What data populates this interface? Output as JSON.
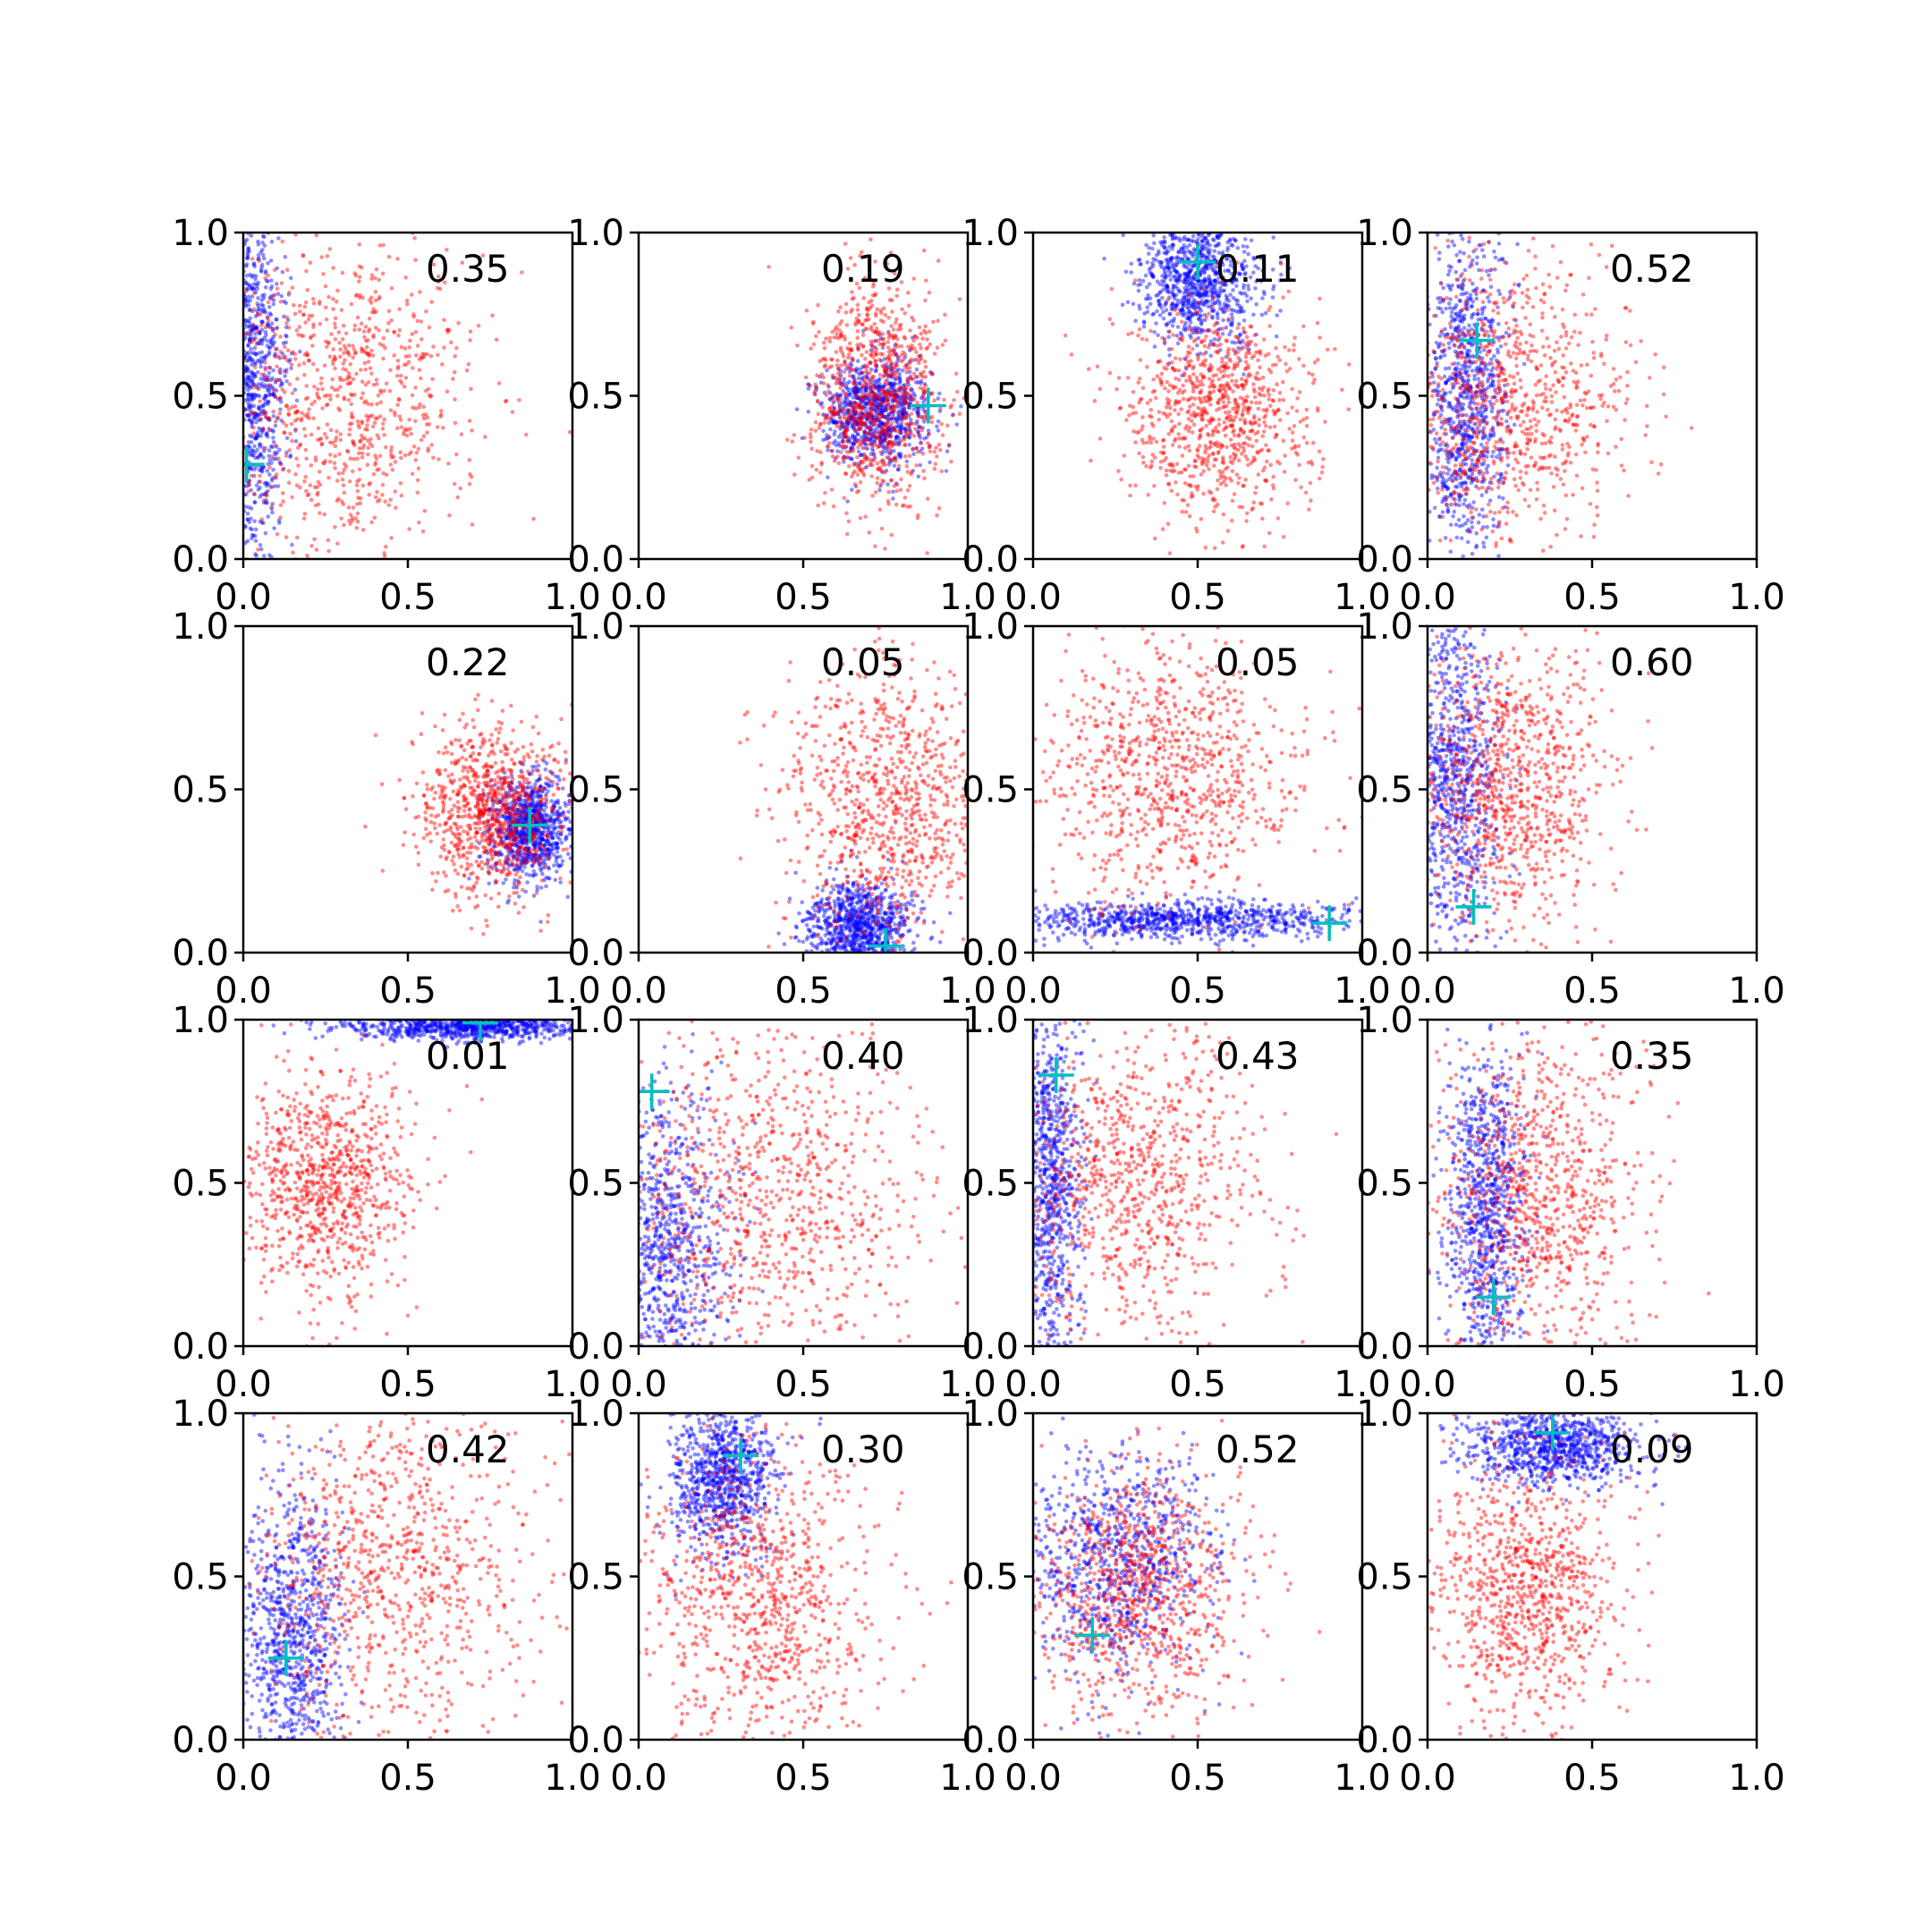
{
  "chart_data": {
    "type": "scatter",
    "layout": "4x4 grid of scatter subplots",
    "xlim": [
      0,
      1
    ],
    "ylim": [
      0,
      1
    ],
    "x_ticks": [
      "0.0",
      "0.5",
      "1.0"
    ],
    "y_ticks": [
      "0.0",
      "0.5",
      "1.0"
    ],
    "grid": false,
    "legend": "none",
    "colors": {
      "series_a": "#0000ff",
      "series_b": "#ff0000",
      "marker": "#00bfbf"
    },
    "panels": [
      {
        "value": "0.35",
        "marker": [
          0.01,
          0.29
        ],
        "red": {
          "cx": 0.3,
          "cy": 0.5,
          "sx": 0.2,
          "sy": 0.26,
          "n": 900
        },
        "blue": {
          "cx": 0.03,
          "cy": 0.55,
          "sx": 0.05,
          "sy": 0.3,
          "n": 900
        }
      },
      {
        "value": "0.19",
        "marker": [
          0.88,
          0.47
        ],
        "red": {
          "cx": 0.72,
          "cy": 0.5,
          "sx": 0.1,
          "sy": 0.17,
          "n": 900
        },
        "blue": {
          "cx": 0.72,
          "cy": 0.45,
          "sx": 0.08,
          "sy": 0.08,
          "n": 900
        }
      },
      {
        "value": "0.11",
        "marker": [
          0.5,
          0.91
        ],
        "red": {
          "cx": 0.57,
          "cy": 0.45,
          "sx": 0.14,
          "sy": 0.17,
          "n": 900
        },
        "blue": {
          "cx": 0.5,
          "cy": 0.85,
          "sx": 0.09,
          "sy": 0.1,
          "n": 900
        }
      },
      {
        "value": "0.52",
        "marker": [
          0.15,
          0.67
        ],
        "red": {
          "cx": 0.25,
          "cy": 0.5,
          "sx": 0.18,
          "sy": 0.22,
          "n": 900
        },
        "blue": {
          "cx": 0.12,
          "cy": 0.5,
          "sx": 0.06,
          "sy": 0.25,
          "n": 900
        }
      },
      {
        "value": "0.22",
        "marker": [
          0.87,
          0.39
        ],
        "red": {
          "cx": 0.75,
          "cy": 0.43,
          "sx": 0.11,
          "sy": 0.13,
          "n": 900
        },
        "blue": {
          "cx": 0.87,
          "cy": 0.38,
          "sx": 0.06,
          "sy": 0.08,
          "n": 900
        }
      },
      {
        "value": "0.05",
        "marker": [
          0.75,
          0.02
        ],
        "red": {
          "cx": 0.75,
          "cy": 0.45,
          "sx": 0.17,
          "sy": 0.22,
          "n": 900
        },
        "blue": {
          "cx": 0.67,
          "cy": 0.08,
          "sx": 0.08,
          "sy": 0.07,
          "n": 900
        }
      },
      {
        "value": "0.05",
        "marker": [
          0.9,
          0.09
        ],
        "red": {
          "cx": 0.42,
          "cy": 0.55,
          "sx": 0.2,
          "sy": 0.2,
          "n": 900
        },
        "blue": {
          "cx": 0.45,
          "cy": 0.1,
          "sx": 0.28,
          "sy": 0.03,
          "n": 900
        }
      },
      {
        "value": "0.60",
        "marker": [
          0.14,
          0.14
        ],
        "red": {
          "cx": 0.25,
          "cy": 0.5,
          "sx": 0.15,
          "sy": 0.22,
          "n": 900
        },
        "blue": {
          "cx": 0.08,
          "cy": 0.55,
          "sx": 0.07,
          "sy": 0.28,
          "n": 900
        }
      },
      {
        "value": "0.01",
        "marker": [
          0.72,
          0.99
        ],
        "red": {
          "cx": 0.25,
          "cy": 0.5,
          "sx": 0.13,
          "sy": 0.17,
          "n": 900
        },
        "blue": {
          "cx": 0.7,
          "cy": 0.98,
          "sx": 0.2,
          "sy": 0.02,
          "n": 900
        }
      },
      {
        "value": "0.40",
        "marker": [
          0.04,
          0.78
        ],
        "red": {
          "cx": 0.4,
          "cy": 0.45,
          "sx": 0.24,
          "sy": 0.27,
          "n": 900
        },
        "blue": {
          "cx": 0.08,
          "cy": 0.3,
          "sx": 0.1,
          "sy": 0.25,
          "n": 900
        }
      },
      {
        "value": "0.43",
        "marker": [
          0.07,
          0.83
        ],
        "red": {
          "cx": 0.3,
          "cy": 0.5,
          "sx": 0.2,
          "sy": 0.25,
          "n": 900
        },
        "blue": {
          "cx": 0.05,
          "cy": 0.5,
          "sx": 0.05,
          "sy": 0.3,
          "n": 900
        }
      },
      {
        "value": "0.35",
        "marker": [
          0.2,
          0.15
        ],
        "red": {
          "cx": 0.33,
          "cy": 0.45,
          "sx": 0.16,
          "sy": 0.25,
          "n": 900
        },
        "blue": {
          "cx": 0.18,
          "cy": 0.4,
          "sx": 0.06,
          "sy": 0.25,
          "n": 900
        }
      },
      {
        "value": "0.42",
        "marker": [
          0.13,
          0.25
        ],
        "red": {
          "cx": 0.45,
          "cy": 0.5,
          "sx": 0.22,
          "sy": 0.27,
          "n": 900
        },
        "blue": {
          "cx": 0.15,
          "cy": 0.3,
          "sx": 0.08,
          "sy": 0.25,
          "n": 900
        }
      },
      {
        "value": "0.30",
        "marker": [
          0.31,
          0.87
        ],
        "red": {
          "cx": 0.35,
          "cy": 0.45,
          "sx": 0.18,
          "sy": 0.25,
          "n": 900
        },
        "blue": {
          "cx": 0.26,
          "cy": 0.8,
          "sx": 0.08,
          "sy": 0.12,
          "n": 900
        }
      },
      {
        "value": "0.52",
        "marker": [
          0.18,
          0.32
        ],
        "red": {
          "cx": 0.3,
          "cy": 0.45,
          "sx": 0.17,
          "sy": 0.2,
          "n": 900
        },
        "blue": {
          "cx": 0.25,
          "cy": 0.55,
          "sx": 0.15,
          "sy": 0.17,
          "n": 900
        }
      },
      {
        "value": "0.09",
        "marker": [
          0.38,
          0.94
        ],
        "red": {
          "cx": 0.3,
          "cy": 0.45,
          "sx": 0.14,
          "sy": 0.2,
          "n": 900
        },
        "blue": {
          "cx": 0.38,
          "cy": 0.9,
          "sx": 0.13,
          "sy": 0.06,
          "n": 900
        }
      }
    ]
  }
}
